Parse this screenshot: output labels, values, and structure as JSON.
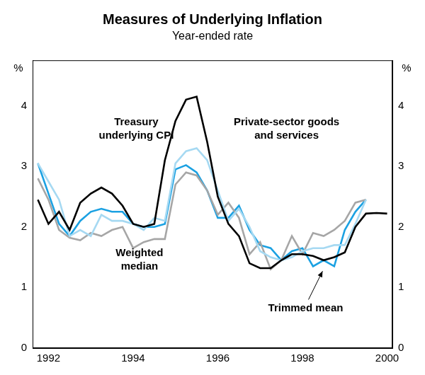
{
  "chart_data": {
    "type": "line",
    "title": "Measures of Underlying Inflation",
    "subtitle": "Year-ended rate",
    "ylabel": "%",
    "categories": [
      null,
      "1992",
      null,
      null,
      null,
      null,
      null,
      null,
      null,
      "1994",
      null,
      null,
      null,
      null,
      null,
      null,
      null,
      "1996",
      null,
      null,
      null,
      null,
      null,
      null,
      null,
      "1998",
      null,
      null,
      null,
      null,
      null,
      null,
      null,
      "2000"
    ],
    "series": [
      {
        "name": "Private-sector goods and services",
        "color": "#000000",
        "values": [
          2.45,
          2.05,
          2.25,
          1.95,
          2.4,
          2.55,
          2.65,
          2.55,
          2.35,
          2.05,
          2.0,
          2.05,
          3.1,
          3.75,
          4.1,
          4.15,
          3.4,
          2.5,
          2.05,
          1.85,
          1.4,
          1.32,
          1.32,
          1.45,
          1.55,
          1.55,
          1.52,
          1.45,
          1.5,
          1.58,
          2.0,
          2.22,
          2.23,
          2.22
        ]
      },
      {
        "name": "Treasury underlying CPI",
        "color": "#a6d9f2",
        "values": [
          3.05,
          2.75,
          2.45,
          1.85,
          1.95,
          1.85,
          2.2,
          2.1,
          2.1,
          2.05,
          1.95,
          2.15,
          2.1,
          3.05,
          3.25,
          3.3,
          3.1,
          2.6,
          2.1,
          2.3,
          2.0,
          1.6,
          1.5,
          1.45,
          1.5,
          1.6,
          1.65,
          1.65,
          1.7,
          1.7,
          2.05,
          2.45,
          null,
          null
        ]
      },
      {
        "name": "Weighted median",
        "color": "#a6a6a6",
        "values": [
          2.8,
          2.45,
          1.95,
          1.82,
          1.78,
          1.9,
          1.85,
          1.95,
          2.0,
          1.65,
          1.75,
          1.8,
          1.8,
          2.7,
          2.9,
          2.85,
          2.6,
          2.2,
          2.4,
          2.15,
          1.55,
          1.75,
          1.3,
          1.45,
          1.85,
          1.55,
          1.9,
          1.85,
          1.95,
          2.1,
          2.4,
          2.45,
          null,
          null
        ]
      },
      {
        "name": "Trimmed mean",
        "color": "#1ba1e2",
        "values": [
          3.05,
          2.55,
          2.05,
          1.85,
          2.1,
          2.25,
          2.3,
          2.25,
          2.25,
          2.05,
          2.0,
          2.0,
          2.05,
          2.95,
          3.02,
          2.9,
          2.6,
          2.15,
          2.15,
          2.35,
          1.95,
          1.7,
          1.65,
          1.45,
          1.6,
          1.65,
          1.35,
          1.45,
          1.35,
          1.95,
          2.25,
          2.45,
          null,
          null
        ]
      }
    ],
    "ylim": [
      0,
      4.75
    ],
    "yticks": [
      0,
      1,
      2,
      3,
      4
    ],
    "grid": false
  }
}
